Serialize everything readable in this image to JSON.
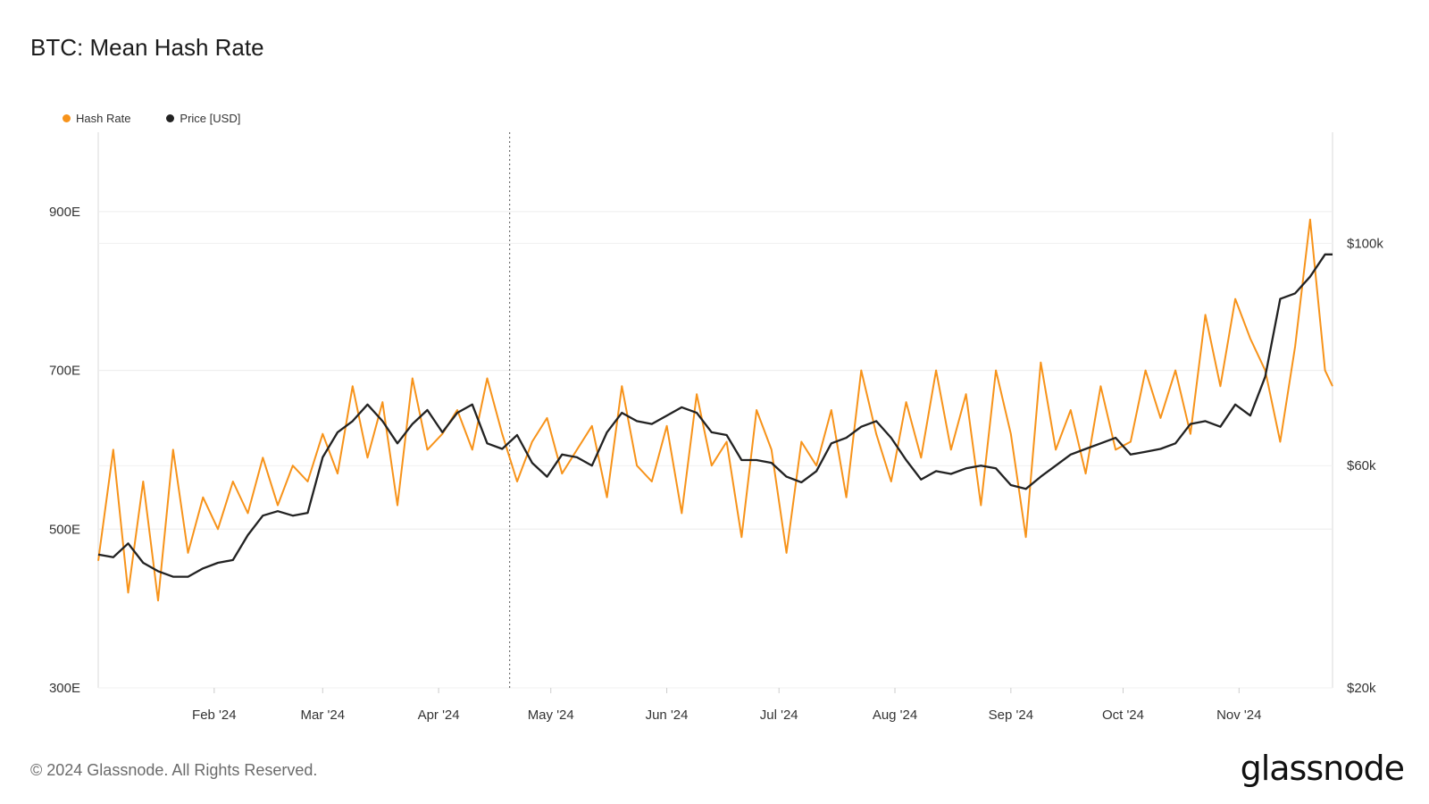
{
  "title": "BTC: Mean Hash Rate",
  "legend": [
    {
      "label": "Hash Rate",
      "color": "#f7931a"
    },
    {
      "label": "Price [USD]",
      "color": "#222222"
    }
  ],
  "footer": "© 2024 Glassnode. All Rights Reserved.",
  "logo": "glassnode",
  "chart_data": {
    "type": "line",
    "title": "BTC: Mean Hash Rate",
    "x_range": [
      "2024-01-01",
      "2024-11-26"
    ],
    "x_ticks": [
      "Feb '24",
      "Mar '24",
      "Apr '24",
      "May '24",
      "Jun '24",
      "Jul '24",
      "Aug '24",
      "Sep '24",
      "Oct '24",
      "Nov '24"
    ],
    "left_axis": {
      "ticks": [
        "300E",
        "500E",
        "700E",
        "900E"
      ],
      "range": [
        300,
        1000
      ],
      "unit": "EH/s"
    },
    "right_axis": {
      "ticks": [
        "$20k",
        "$60k",
        "$100k"
      ],
      "range": [
        20000,
        120000
      ],
      "unit": "USD"
    },
    "marker_date": "2024-04-20",
    "grid": true,
    "legend_position": "top-left",
    "series": [
      {
        "name": "Hash Rate",
        "axis": "left",
        "color": "#f7931a",
        "x": [
          "2024-01-01",
          "2024-01-05",
          "2024-01-09",
          "2024-01-13",
          "2024-01-17",
          "2024-01-21",
          "2024-01-25",
          "2024-01-29",
          "2024-02-02",
          "2024-02-06",
          "2024-02-10",
          "2024-02-14",
          "2024-02-18",
          "2024-02-22",
          "2024-02-26",
          "2024-03-01",
          "2024-03-05",
          "2024-03-09",
          "2024-03-13",
          "2024-03-17",
          "2024-03-21",
          "2024-03-25",
          "2024-03-29",
          "2024-04-02",
          "2024-04-06",
          "2024-04-10",
          "2024-04-14",
          "2024-04-18",
          "2024-04-22",
          "2024-04-26",
          "2024-04-30",
          "2024-05-04",
          "2024-05-08",
          "2024-05-12",
          "2024-05-16",
          "2024-05-20",
          "2024-05-24",
          "2024-05-28",
          "2024-06-01",
          "2024-06-05",
          "2024-06-09",
          "2024-06-13",
          "2024-06-17",
          "2024-06-21",
          "2024-06-25",
          "2024-06-29",
          "2024-07-03",
          "2024-07-07",
          "2024-07-11",
          "2024-07-15",
          "2024-07-19",
          "2024-07-23",
          "2024-07-27",
          "2024-07-31",
          "2024-08-04",
          "2024-08-08",
          "2024-08-12",
          "2024-08-16",
          "2024-08-20",
          "2024-08-24",
          "2024-08-28",
          "2024-09-01",
          "2024-09-05",
          "2024-09-09",
          "2024-09-13",
          "2024-09-17",
          "2024-09-21",
          "2024-09-25",
          "2024-09-29",
          "2024-10-03",
          "2024-10-07",
          "2024-10-11",
          "2024-10-15",
          "2024-10-19",
          "2024-10-23",
          "2024-10-27",
          "2024-10-31",
          "2024-11-04",
          "2024-11-08",
          "2024-11-12",
          "2024-11-16",
          "2024-11-20",
          "2024-11-24",
          "2024-11-26"
        ],
        "values": [
          460,
          600,
          420,
          560,
          410,
          600,
          470,
          540,
          500,
          560,
          520,
          590,
          530,
          580,
          560,
          620,
          570,
          680,
          590,
          660,
          530,
          690,
          600,
          620,
          650,
          600,
          690,
          620,
          560,
          610,
          640,
          570,
          600,
          630,
          540,
          680,
          580,
          560,
          630,
          520,
          670,
          580,
          610,
          490,
          650,
          600,
          470,
          610,
          580,
          650,
          540,
          700,
          620,
          560,
          660,
          590,
          700,
          600,
          670,
          530,
          700,
          620,
          490,
          710,
          600,
          650,
          570,
          680,
          600,
          610,
          700,
          640,
          700,
          620,
          770,
          680,
          790,
          740,
          700,
          610,
          730,
          890,
          700,
          680
        ],
        "peaks_note": ""
      },
      {
        "name": "Price [USD]",
        "axis": "right",
        "color": "#222222",
        "x": [
          "2024-01-01",
          "2024-01-05",
          "2024-01-09",
          "2024-01-13",
          "2024-01-17",
          "2024-01-21",
          "2024-01-25",
          "2024-01-29",
          "2024-02-02",
          "2024-02-06",
          "2024-02-10",
          "2024-02-14",
          "2024-02-18",
          "2024-02-22",
          "2024-02-26",
          "2024-03-01",
          "2024-03-05",
          "2024-03-09",
          "2024-03-13",
          "2024-03-17",
          "2024-03-21",
          "2024-03-25",
          "2024-03-29",
          "2024-04-02",
          "2024-04-06",
          "2024-04-10",
          "2024-04-14",
          "2024-04-18",
          "2024-04-22",
          "2024-04-26",
          "2024-04-30",
          "2024-05-04",
          "2024-05-08",
          "2024-05-12",
          "2024-05-16",
          "2024-05-20",
          "2024-05-24",
          "2024-05-28",
          "2024-06-01",
          "2024-06-05",
          "2024-06-09",
          "2024-06-13",
          "2024-06-17",
          "2024-06-21",
          "2024-06-25",
          "2024-06-29",
          "2024-07-03",
          "2024-07-07",
          "2024-07-11",
          "2024-07-15",
          "2024-07-19",
          "2024-07-23",
          "2024-07-27",
          "2024-07-31",
          "2024-08-04",
          "2024-08-08",
          "2024-08-12",
          "2024-08-16",
          "2024-08-20",
          "2024-08-24",
          "2024-08-28",
          "2024-09-01",
          "2024-09-05",
          "2024-09-09",
          "2024-09-13",
          "2024-09-17",
          "2024-09-21",
          "2024-09-25",
          "2024-09-29",
          "2024-10-03",
          "2024-10-07",
          "2024-10-11",
          "2024-10-15",
          "2024-10-19",
          "2024-10-23",
          "2024-10-27",
          "2024-10-31",
          "2024-11-04",
          "2024-11-08",
          "2024-11-12",
          "2024-11-16",
          "2024-11-20",
          "2024-11-24",
          "2024-11-26"
        ],
        "values": [
          44000,
          43500,
          46000,
          42500,
          41000,
          40000,
          40000,
          41500,
          42500,
          43000,
          47500,
          51000,
          51800,
          51000,
          51500,
          61500,
          66000,
          68000,
          71000,
          68000,
          64000,
          67500,
          70000,
          66000,
          69500,
          71000,
          64000,
          63000,
          65500,
          60500,
          58000,
          62000,
          61500,
          60000,
          66000,
          69500,
          68000,
          67500,
          69000,
          70500,
          69500,
          66000,
          65500,
          61000,
          61000,
          60500,
          58000,
          57000,
          59000,
          64000,
          65000,
          67000,
          68000,
          65000,
          61000,
          57500,
          59000,
          58500,
          59500,
          60000,
          59500,
          56500,
          55800,
          58000,
          60000,
          62000,
          63000,
          64000,
          65000,
          62000,
          62500,
          63000,
          64000,
          67500,
          68000,
          67000,
          71000,
          69000,
          76000,
          90000,
          91000,
          94000,
          98000,
          98000
        ]
      }
    ]
  }
}
